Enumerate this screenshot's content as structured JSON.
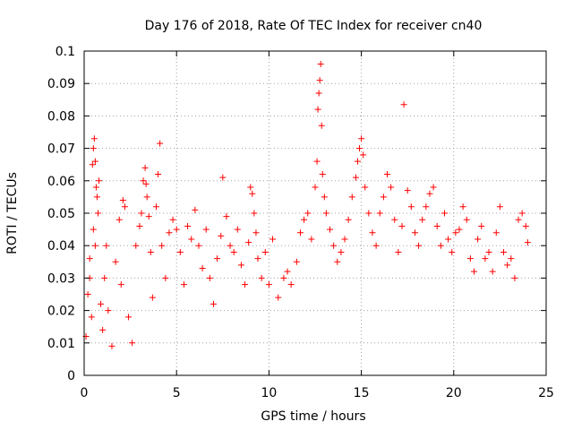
{
  "chart_data": {
    "type": "scatter",
    "title": "Day 176 of 2018, Rate Of TEC Index for receiver cn40",
    "xlabel": "GPS time / hours",
    "ylabel": "ROTI / TECUs",
    "xlim": [
      0,
      25
    ],
    "ylim": [
      0,
      0.1
    ],
    "x_ticks": [
      0,
      5,
      10,
      15,
      20,
      25
    ],
    "x_tick_labels": [
      "0",
      "5",
      "10",
      "15",
      "20",
      "25"
    ],
    "y_ticks": [
      0,
      0.01,
      0.02,
      0.03,
      0.04,
      0.05,
      0.06,
      0.07,
      0.08,
      0.09,
      0.1
    ],
    "y_tick_labels": [
      "0",
      "0.01",
      "0.02",
      "0.03",
      "0.04",
      "0.05",
      "0.06",
      "0.07",
      "0.08",
      "0.09",
      "0.1"
    ],
    "grid": true,
    "marker": "+",
    "color": "#ff0000",
    "series": [
      {
        "name": "ROTI",
        "points": [
          [
            0.1,
            0.012
          ],
          [
            0.2,
            0.025
          ],
          [
            0.3,
            0.036
          ],
          [
            0.4,
            0.018
          ],
          [
            0.45,
            0.065
          ],
          [
            0.5,
            0.07
          ],
          [
            0.55,
            0.073
          ],
          [
            0.6,
            0.066
          ],
          [
            0.65,
            0.058
          ],
          [
            0.7,
            0.055
          ],
          [
            0.75,
            0.05
          ],
          [
            0.8,
            0.06
          ],
          [
            0.5,
            0.045
          ],
          [
            0.6,
            0.04
          ],
          [
            0.3,
            0.03
          ],
          [
            0.9,
            0.022
          ],
          [
            1.0,
            0.014
          ],
          [
            1.1,
            0.03
          ],
          [
            1.2,
            0.04
          ],
          [
            1.3,
            0.02
          ],
          [
            1.5,
            0.009
          ],
          [
            1.7,
            0.035
          ],
          [
            1.9,
            0.048
          ],
          [
            2.0,
            0.028
          ],
          [
            2.1,
            0.054
          ],
          [
            2.2,
            0.052
          ],
          [
            2.4,
            0.018
          ],
          [
            2.6,
            0.01
          ],
          [
            2.8,
            0.04
          ],
          [
            3.0,
            0.046
          ],
          [
            3.1,
            0.05
          ],
          [
            3.2,
            0.06
          ],
          [
            3.3,
            0.064
          ],
          [
            3.35,
            0.059
          ],
          [
            3.4,
            0.055
          ],
          [
            3.5,
            0.049
          ],
          [
            3.6,
            0.038
          ],
          [
            3.7,
            0.024
          ],
          [
            3.9,
            0.052
          ],
          [
            4.0,
            0.062
          ],
          [
            4.1,
            0.0715
          ],
          [
            4.2,
            0.04
          ],
          [
            4.4,
            0.03
          ],
          [
            4.6,
            0.044
          ],
          [
            4.8,
            0.048
          ],
          [
            5.0,
            0.045
          ],
          [
            5.2,
            0.038
          ],
          [
            5.4,
            0.028
          ],
          [
            5.6,
            0.046
          ],
          [
            5.8,
            0.042
          ],
          [
            6.0,
            0.051
          ],
          [
            6.2,
            0.04
          ],
          [
            6.4,
            0.033
          ],
          [
            6.6,
            0.045
          ],
          [
            6.8,
            0.03
          ],
          [
            7.0,
            0.022
          ],
          [
            7.2,
            0.036
          ],
          [
            7.4,
            0.043
          ],
          [
            7.5,
            0.061
          ],
          [
            7.7,
            0.049
          ],
          [
            7.9,
            0.04
          ],
          [
            8.1,
            0.038
          ],
          [
            8.3,
            0.045
          ],
          [
            8.5,
            0.034
          ],
          [
            8.7,
            0.028
          ],
          [
            8.9,
            0.041
          ],
          [
            9.0,
            0.058
          ],
          [
            9.1,
            0.056
          ],
          [
            9.2,
            0.05
          ],
          [
            9.3,
            0.044
          ],
          [
            9.4,
            0.036
          ],
          [
            9.6,
            0.03
          ],
          [
            9.8,
            0.038
          ],
          [
            10.0,
            0.028
          ],
          [
            10.2,
            0.042
          ],
          [
            10.5,
            0.024
          ],
          [
            10.8,
            0.03
          ],
          [
            11.0,
            0.032
          ],
          [
            11.2,
            0.028
          ],
          [
            11.5,
            0.035
          ],
          [
            11.7,
            0.044
          ],
          [
            11.9,
            0.048
          ],
          [
            12.1,
            0.05
          ],
          [
            12.3,
            0.042
          ],
          [
            12.5,
            0.058
          ],
          [
            12.6,
            0.066
          ],
          [
            12.65,
            0.082
          ],
          [
            12.7,
            0.087
          ],
          [
            12.75,
            0.091
          ],
          [
            12.8,
            0.096
          ],
          [
            12.85,
            0.077
          ],
          [
            12.9,
            0.062
          ],
          [
            13.0,
            0.055
          ],
          [
            13.1,
            0.05
          ],
          [
            13.3,
            0.045
          ],
          [
            13.5,
            0.04
          ],
          [
            13.7,
            0.035
          ],
          [
            13.9,
            0.038
          ],
          [
            14.1,
            0.042
          ],
          [
            14.3,
            0.048
          ],
          [
            14.5,
            0.055
          ],
          [
            14.7,
            0.061
          ],
          [
            14.8,
            0.066
          ],
          [
            14.9,
            0.07
          ],
          [
            15.0,
            0.073
          ],
          [
            15.1,
            0.068
          ],
          [
            15.2,
            0.058
          ],
          [
            15.4,
            0.05
          ],
          [
            15.6,
            0.044
          ],
          [
            15.8,
            0.04
          ],
          [
            16.0,
            0.05
          ],
          [
            16.2,
            0.055
          ],
          [
            16.4,
            0.062
          ],
          [
            16.6,
            0.058
          ],
          [
            16.8,
            0.048
          ],
          [
            17.0,
            0.038
          ],
          [
            17.2,
            0.046
          ],
          [
            17.3,
            0.0835
          ],
          [
            17.5,
            0.057
          ],
          [
            17.7,
            0.052
          ],
          [
            17.9,
            0.044
          ],
          [
            18.1,
            0.04
          ],
          [
            18.3,
            0.048
          ],
          [
            18.5,
            0.052
          ],
          [
            18.7,
            0.056
          ],
          [
            18.9,
            0.058
          ],
          [
            19.1,
            0.046
          ],
          [
            19.3,
            0.04
          ],
          [
            19.5,
            0.05
          ],
          [
            19.7,
            0.042
          ],
          [
            19.9,
            0.038
          ],
          [
            20.1,
            0.044
          ],
          [
            20.3,
            0.045
          ],
          [
            20.5,
            0.052
          ],
          [
            20.7,
            0.048
          ],
          [
            20.9,
            0.036
          ],
          [
            21.1,
            0.032
          ],
          [
            21.3,
            0.042
          ],
          [
            21.5,
            0.046
          ],
          [
            21.7,
            0.036
          ],
          [
            21.9,
            0.038
          ],
          [
            22.1,
            0.032
          ],
          [
            22.3,
            0.044
          ],
          [
            22.5,
            0.052
          ],
          [
            22.7,
            0.038
          ],
          [
            22.9,
            0.034
          ],
          [
            23.1,
            0.036
          ],
          [
            23.3,
            0.03
          ],
          [
            23.5,
            0.048
          ],
          [
            23.7,
            0.05
          ],
          [
            23.9,
            0.046
          ],
          [
            24.0,
            0.041
          ]
        ]
      }
    ]
  }
}
